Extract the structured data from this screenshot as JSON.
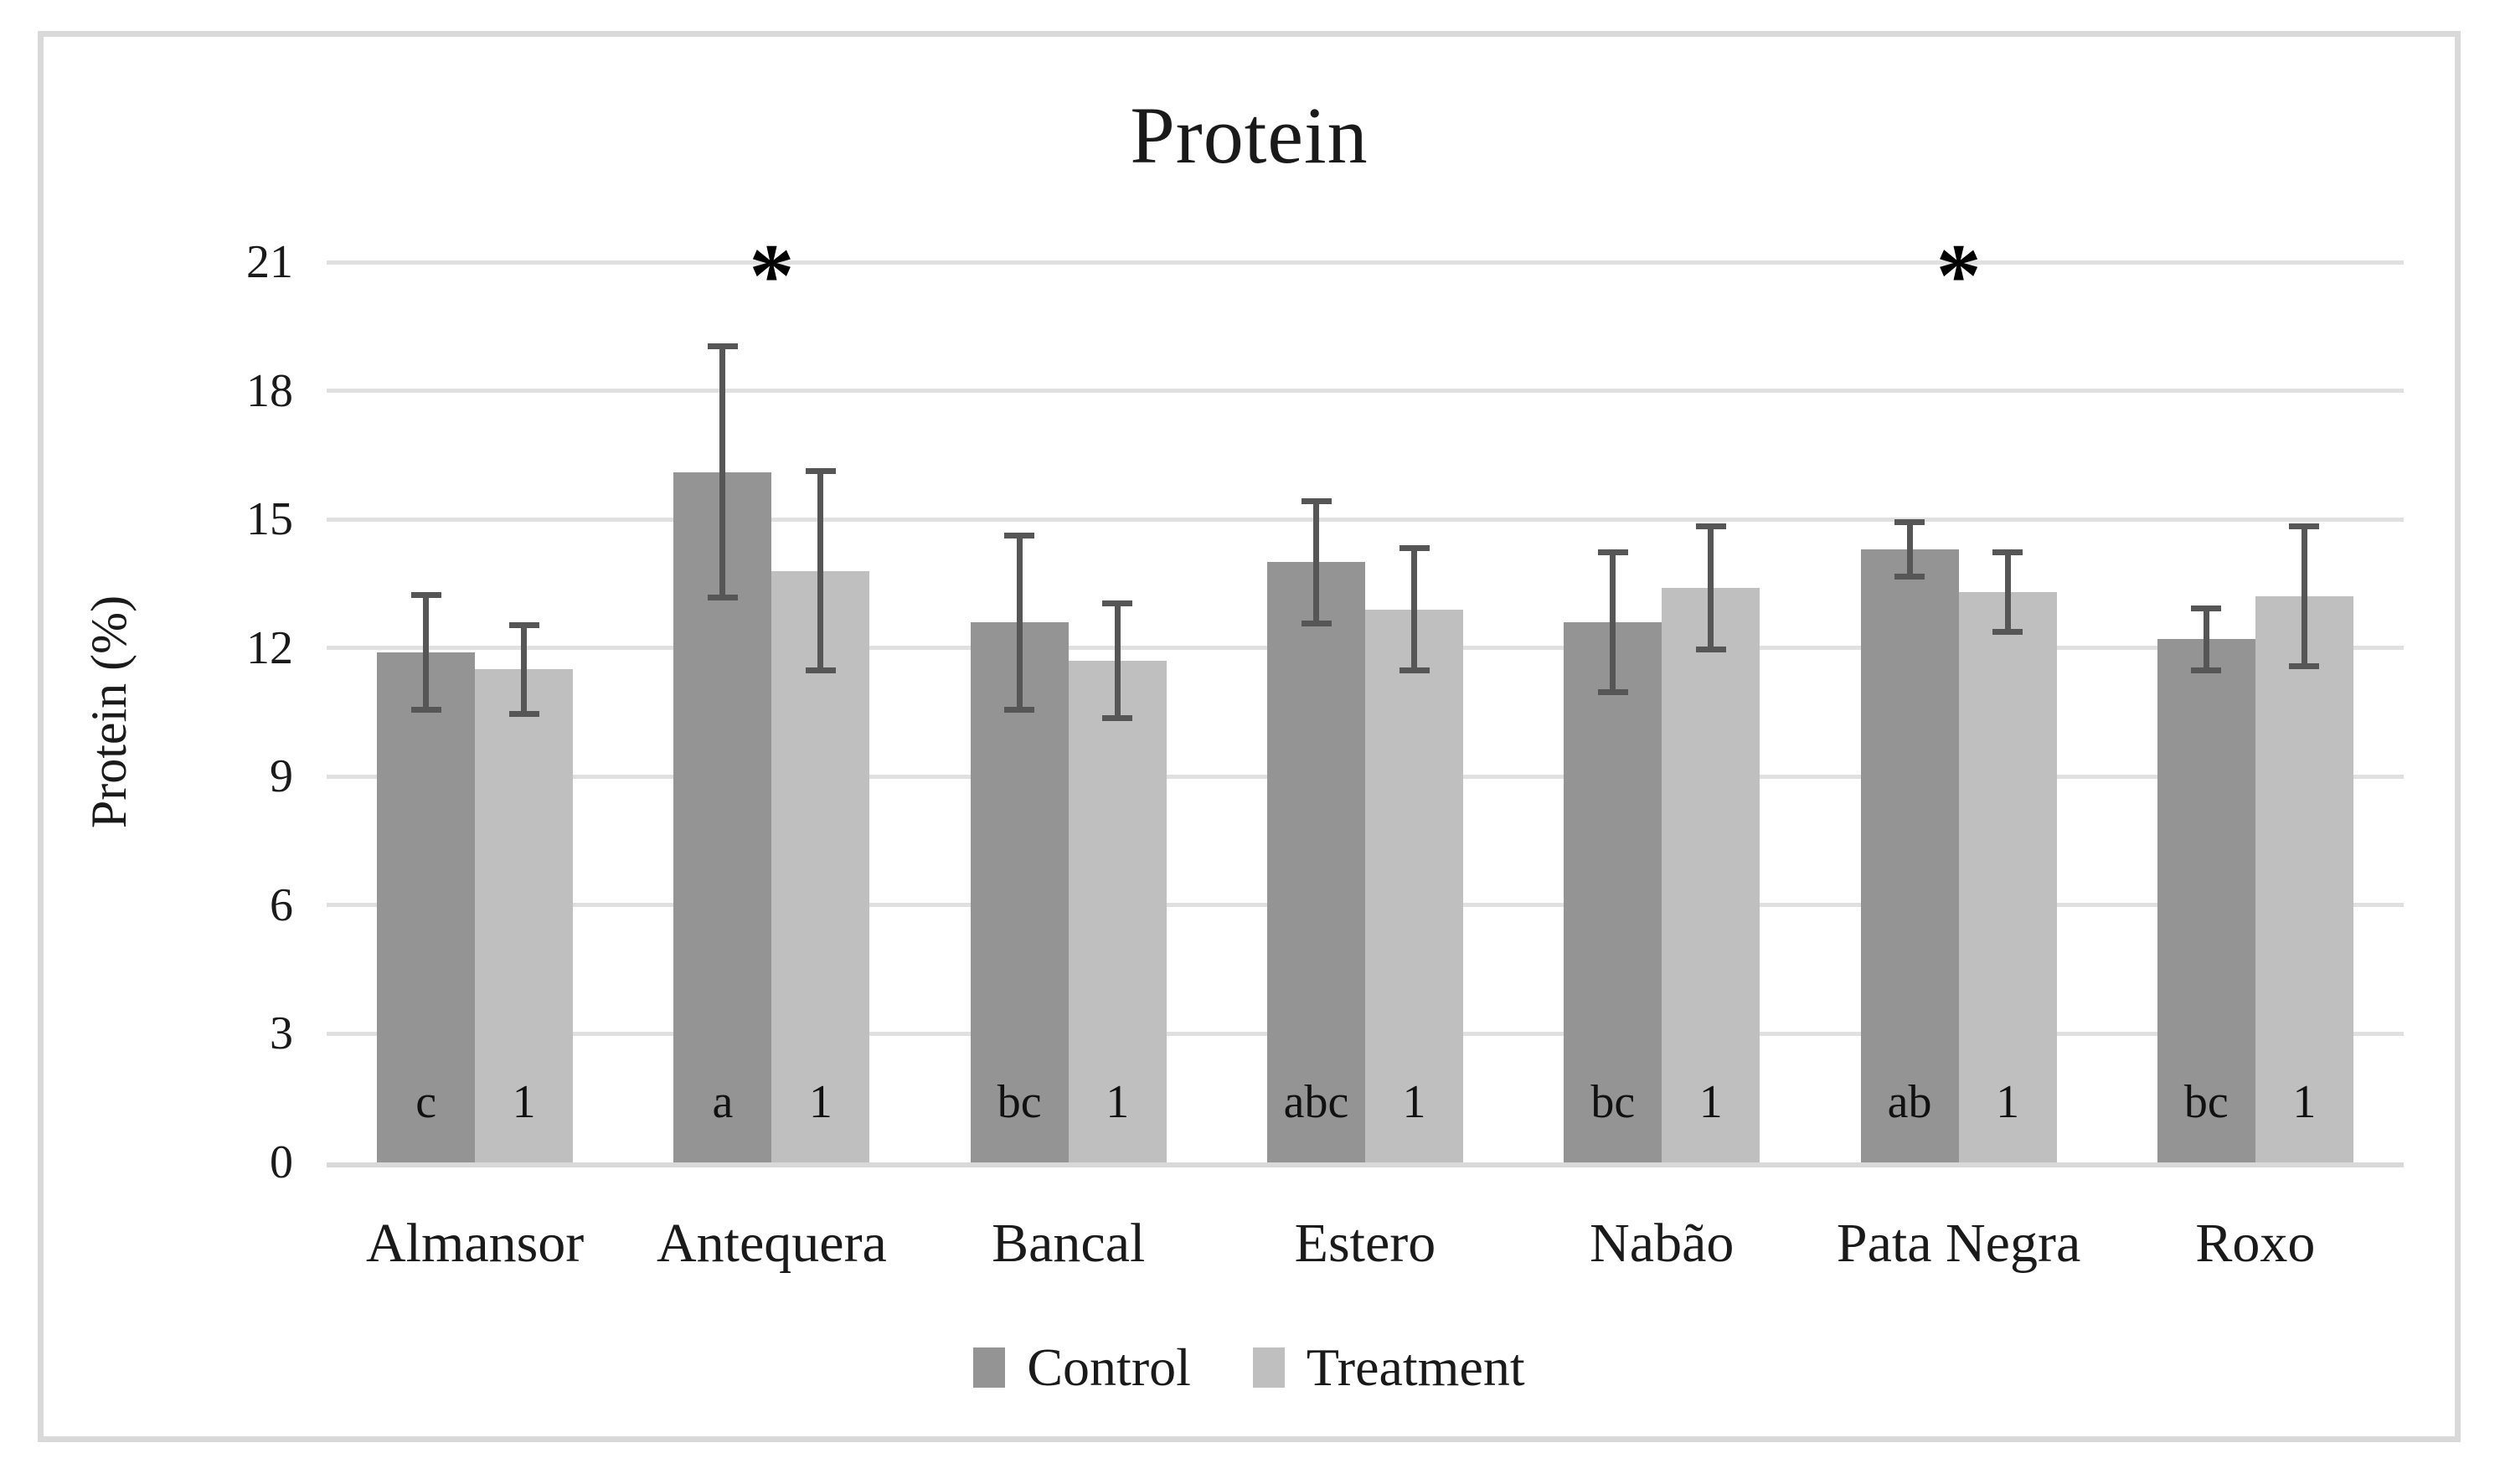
{
  "title": "Protein",
  "y_axis": {
    "label": "Protein (%)",
    "ticks": [
      0,
      3,
      6,
      9,
      12,
      15,
      18,
      21
    ],
    "max": 21
  },
  "legend": {
    "items": [
      "Control",
      "Treatment"
    ],
    "position": "bottom"
  },
  "colors": {
    "control": "#949494",
    "treatment": "#bfbfbf",
    "error_bar": "#565656",
    "gridline": "#e0e0e0",
    "axis_line": "#d9d9d9",
    "frame_border": "#d9d9d9",
    "background": "#ffffff",
    "text": "#1a1a1a"
  },
  "chart_data": {
    "type": "bar",
    "title": "Protein",
    "xlabel": "",
    "ylabel": "Protein (%)",
    "ylim": [
      0,
      21
    ],
    "yticks": [
      0,
      3,
      6,
      9,
      12,
      15,
      18,
      21
    ],
    "grid": true,
    "legend_position": "bottom",
    "categories": [
      "Almansor",
      "Antequera",
      "Bancal",
      "Estero",
      "Nabão",
      "Pata Negra",
      "Roxo"
    ],
    "series": [
      {
        "name": "Control",
        "color": "#949494",
        "values": [
          11.9,
          16.1,
          12.6,
          14.0,
          12.6,
          14.3,
          12.2
        ],
        "error": [
          1.4,
          3.0,
          2.1,
          1.5,
          1.7,
          0.7,
          0.8
        ],
        "bar_labels": [
          "c",
          "a",
          "bc",
          "abc",
          "bc",
          "ab",
          "bc"
        ]
      },
      {
        "name": "Treatment",
        "color": "#bfbfbf",
        "values": [
          11.5,
          13.8,
          11.7,
          12.9,
          13.4,
          13.3,
          13.2
        ],
        "error": [
          1.1,
          2.4,
          1.4,
          1.5,
          1.5,
          1.0,
          1.7
        ],
        "bar_labels": [
          "1",
          "1",
          "1",
          "1",
          "1",
          "1",
          "1"
        ]
      }
    ],
    "annotations": [
      {
        "category": "Antequera",
        "symbol": "*",
        "meaning": "significant difference"
      },
      {
        "category": "Pata Negra",
        "symbol": "*",
        "meaning": "significant difference"
      }
    ]
  }
}
